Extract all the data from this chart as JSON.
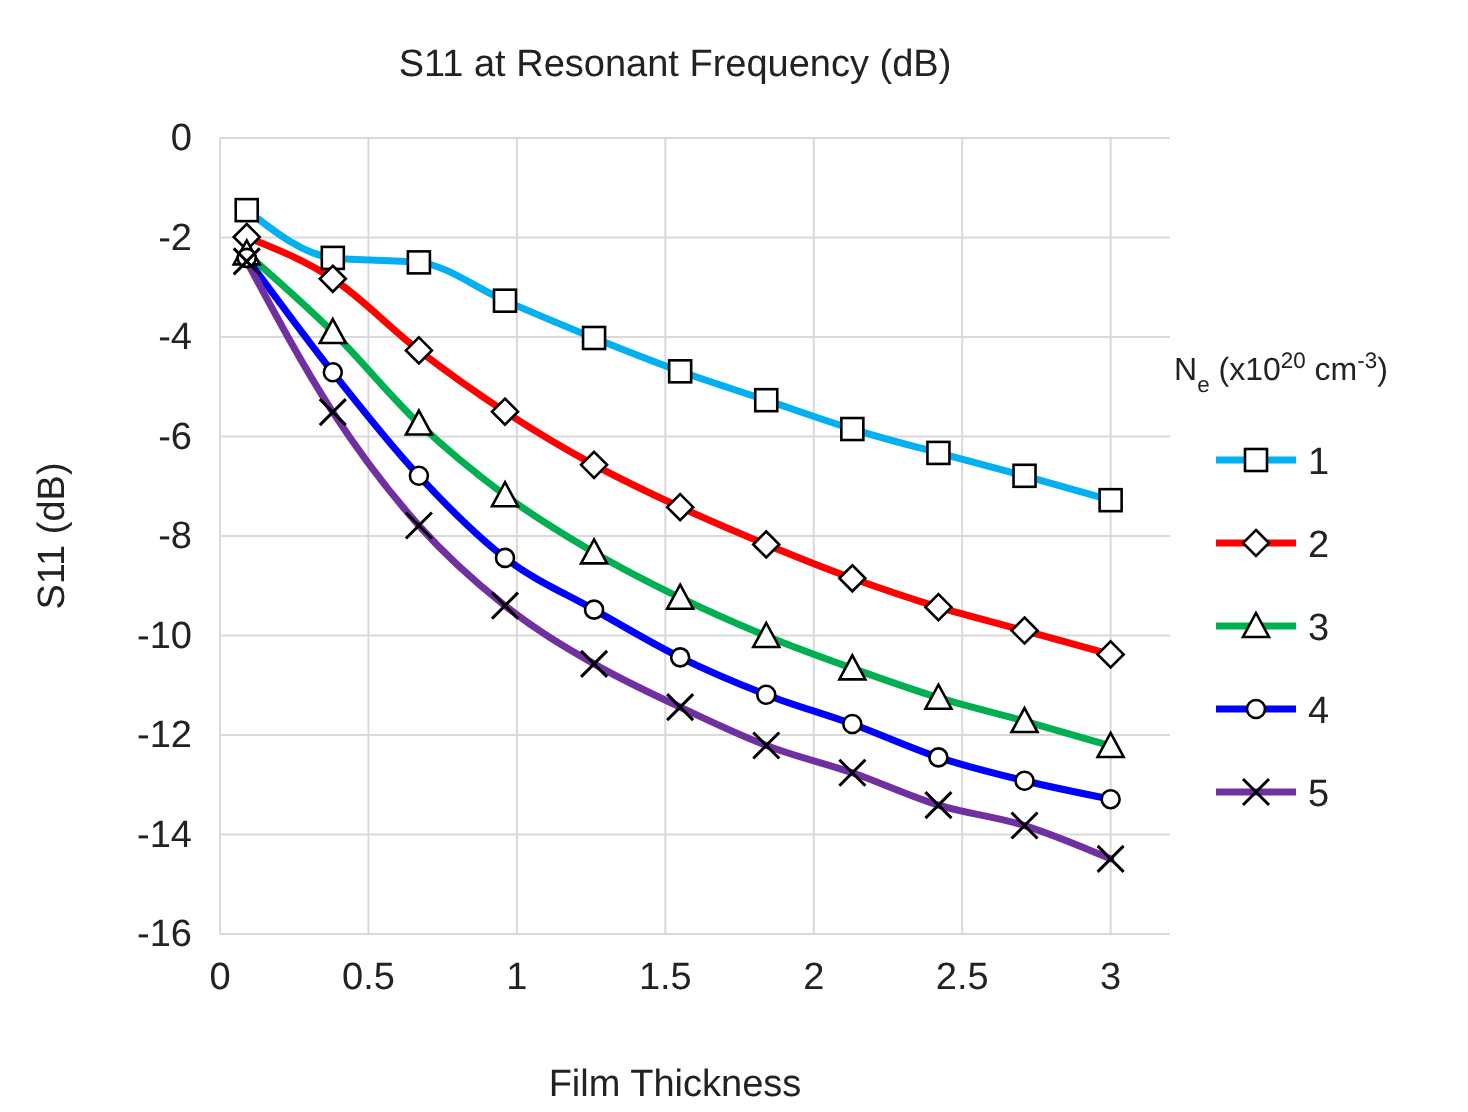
{
  "chart_data": {
    "type": "line",
    "title": "S11 at Resonant Frequency (dB)",
    "xlabel": "Film Thickness",
    "ylabel": "S11 (dB)",
    "legend_title": "N$_{e}$ (x10$^{20}$ cm$^{-3}$)",
    "x": [
      0.09,
      0.38,
      0.67,
      0.96,
      1.26,
      1.55,
      1.84,
      2.13,
      2.42,
      2.71,
      3.0
    ],
    "series": [
      {
        "name": "1",
        "color": "#00b0f0",
        "marker": "square",
        "values": [
          -1.45,
          -2.41,
          -2.5,
          -3.27,
          -4.02,
          -4.69,
          -5.27,
          -5.85,
          -6.33,
          -6.79,
          -7.28
        ]
      },
      {
        "name": "2",
        "color": "#ff0000",
        "marker": "diamond",
        "values": [
          -1.99,
          -2.83,
          -4.27,
          -5.5,
          -6.57,
          -7.42,
          -8.17,
          -8.85,
          -9.43,
          -9.9,
          -10.38
        ]
      },
      {
        "name": "3",
        "color": "#00b050",
        "marker": "triangle",
        "values": [
          -2.32,
          -3.9,
          -5.74,
          -7.18,
          -8.33,
          -9.24,
          -10.01,
          -10.66,
          -11.25,
          -11.72,
          -12.22
        ]
      },
      {
        "name": "4",
        "color": "#0000ff",
        "marker": "circle",
        "values": [
          -2.41,
          -4.71,
          -6.79,
          -8.44,
          -9.48,
          -10.44,
          -11.19,
          -11.78,
          -12.45,
          -12.92,
          -13.29
        ]
      },
      {
        "name": "5",
        "color": "#7030a0",
        "marker": "cross",
        "values": [
          -2.48,
          -5.51,
          -7.79,
          -9.4,
          -10.57,
          -11.44,
          -12.21,
          -12.76,
          -13.41,
          -13.82,
          -14.49
        ]
      }
    ],
    "xlim": [
      0,
      3.2
    ],
    "xticks": [
      0,
      0.5,
      1,
      1.5,
      2,
      2.5,
      3
    ],
    "ylim": [
      -16,
      0
    ],
    "yticks": [
      -16,
      -14,
      -12,
      -10,
      -8,
      -6,
      -4,
      -2,
      0
    ],
    "grid": true,
    "legend": "right",
    "line_style": "solid"
  }
}
